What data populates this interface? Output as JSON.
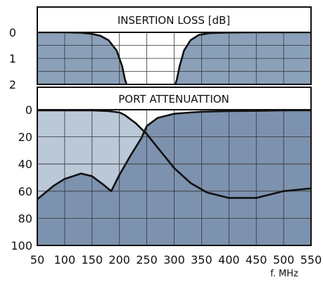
{
  "chart_data": [
    {
      "type": "area",
      "title": "INSERTION LOSS [dB]",
      "xlabel": "f. MHz",
      "ylabel": "",
      "xlim": [
        50,
        550
      ],
      "ylim": [
        0,
        2
      ],
      "y_inverted": true,
      "xticks": [
        "50",
        "100",
        "150",
        "200",
        "250",
        "300",
        "350",
        "400",
        "450",
        "500",
        "550"
      ],
      "yticks": [
        "0",
        "1",
        "2"
      ],
      "grid": true,
      "series": [
        {
          "x": [
            50,
            100,
            130,
            150,
            165,
            180,
            195,
            205,
            210,
            213
          ],
          "y": [
            0.0,
            0.0,
            0.02,
            0.06,
            0.13,
            0.3,
            0.7,
            1.3,
            1.8,
            2.0
          ]
        },
        {
          "x": [
            302,
            305,
            310,
            318,
            330,
            345,
            365,
            400,
            450,
            500,
            550
          ],
          "y": [
            2.0,
            1.8,
            1.3,
            0.7,
            0.3,
            0.1,
            0.03,
            0.01,
            0.0,
            0.0,
            0.0
          ]
        }
      ],
      "colors": {
        "fill": "#8ba0b9",
        "line": "#111111",
        "grid": "#333333"
      }
    },
    {
      "type": "area",
      "title": "PORT ATTENUATTION",
      "xlabel": "f. MHz",
      "ylabel": "",
      "xlim": [
        50,
        550
      ],
      "ylim": [
        0,
        100
      ],
      "y_inverted": true,
      "xticks": [
        "50",
        "100",
        "150",
        "200",
        "250",
        "300",
        "350",
        "400",
        "450",
        "500",
        "550"
      ],
      "yticks": [
        "0",
        "20",
        "40",
        "60",
        "80",
        "100"
      ],
      "grid": true,
      "series": [
        {
          "x": [
            50,
            100,
            150,
            180,
            200,
            210,
            220,
            230,
            240,
            250,
            260,
            280,
            300,
            330,
            360,
            400,
            450,
            500,
            550
          ],
          "y": [
            0.5,
            0.5,
            0.5,
            1,
            2,
            4,
            7,
            10,
            14,
            18,
            23,
            33,
            43,
            54,
            61,
            65,
            65,
            60,
            58
          ]
        },
        {
          "x": [
            50,
            80,
            100,
            130,
            150,
            170,
            185,
            200,
            220,
            240,
            250,
            270,
            300,
            330,
            350,
            400,
            450,
            500,
            550
          ],
          "y": [
            66,
            56,
            51,
            47,
            49,
            55,
            60,
            48,
            34,
            21,
            12,
            6,
            3,
            2,
            1.5,
            1,
            0.8,
            0.5,
            0.4
          ]
        }
      ],
      "colors": {
        "fill_dark": "#7d92ae",
        "fill_light": "#bac8d8",
        "line": "#111111",
        "grid": "#333333"
      }
    }
  ]
}
